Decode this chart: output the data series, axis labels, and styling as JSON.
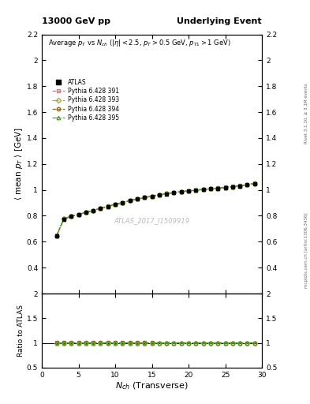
{
  "title_left": "13000 GeV pp",
  "title_right": "Underlying Event",
  "plot_title": "Average $p_T$ vs $N_{ch}$ ($|\\eta| < 2.5$, $p_T > 0.5$ GeV, $p_{T1} > 1$ GeV)",
  "xlabel": "$N_{ch}$ (Transverse)",
  "ylabel_main": "$\\langle$ mean $p_T$ $\\rangle$ [GeV]",
  "ylabel_ratio": "Ratio to ATLAS",
  "watermark": "ATLAS_2017_I1509919",
  "right_label": "mcplots.cern.ch [arXiv:1306.3436]",
  "right_label2": "Rivet 3.1.10, ≥ 3.1M events",
  "ylim_main": [
    0.2,
    2.2
  ],
  "ylim_ratio": [
    0.5,
    2.0
  ],
  "xlim": [
    1,
    30
  ],
  "nch_values": [
    2,
    3,
    4,
    5,
    6,
    7,
    8,
    9,
    10,
    11,
    12,
    13,
    14,
    15,
    16,
    17,
    18,
    19,
    20,
    21,
    22,
    23,
    24,
    25,
    26,
    27,
    28,
    29
  ],
  "atlas_y": [
    0.645,
    0.775,
    0.795,
    0.808,
    0.826,
    0.84,
    0.856,
    0.872,
    0.888,
    0.9,
    0.916,
    0.928,
    0.94,
    0.95,
    0.96,
    0.97,
    0.978,
    0.985,
    0.991,
    0.997,
    1.002,
    1.007,
    1.012,
    1.018,
    1.024,
    1.03,
    1.038,
    1.048
  ],
  "atlas_yerr": [
    0.015,
    0.008,
    0.006,
    0.005,
    0.005,
    0.005,
    0.005,
    0.005,
    0.005,
    0.005,
    0.005,
    0.005,
    0.005,
    0.005,
    0.005,
    0.005,
    0.005,
    0.005,
    0.005,
    0.005,
    0.005,
    0.005,
    0.005,
    0.005,
    0.005,
    0.005,
    0.006,
    0.01
  ],
  "pythia391_y": [
    0.648,
    0.778,
    0.798,
    0.81,
    0.828,
    0.842,
    0.858,
    0.874,
    0.89,
    0.902,
    0.918,
    0.93,
    0.942,
    0.952,
    0.962,
    0.972,
    0.98,
    0.987,
    0.993,
    0.999,
    1.004,
    1.009,
    1.014,
    1.02,
    1.026,
    1.032,
    1.04,
    1.05
  ],
  "pythia393_y": [
    0.646,
    0.776,
    0.796,
    0.809,
    0.827,
    0.841,
    0.857,
    0.873,
    0.889,
    0.901,
    0.917,
    0.929,
    0.941,
    0.951,
    0.961,
    0.971,
    0.979,
    0.986,
    0.992,
    0.998,
    1.003,
    1.008,
    1.013,
    1.019,
    1.025,
    1.031,
    1.039,
    1.049
  ],
  "pythia394_y": [
    0.647,
    0.777,
    0.797,
    0.81,
    0.828,
    0.842,
    0.858,
    0.874,
    0.89,
    0.902,
    0.918,
    0.93,
    0.942,
    0.952,
    0.962,
    0.972,
    0.98,
    0.987,
    0.993,
    0.999,
    1.004,
    1.009,
    1.014,
    1.02,
    1.026,
    1.032,
    1.04,
    1.05
  ],
  "pythia395_y": [
    0.645,
    0.775,
    0.795,
    0.808,
    0.826,
    0.84,
    0.856,
    0.872,
    0.888,
    0.9,
    0.916,
    0.928,
    0.94,
    0.95,
    0.96,
    0.97,
    0.978,
    0.985,
    0.991,
    0.997,
    1.002,
    1.007,
    1.012,
    1.018,
    1.024,
    1.03,
    1.038,
    1.05
  ],
  "color_391": "#cc7788",
  "color_393": "#aaaa44",
  "color_394": "#886622",
  "color_395": "#44aa22",
  "atlas_color": "#000000",
  "legend_labels": [
    "ATLAS",
    "Pythia 6.428 391",
    "Pythia 6.428 393",
    "Pythia 6.428 394",
    "Pythia 6.428 395"
  ]
}
